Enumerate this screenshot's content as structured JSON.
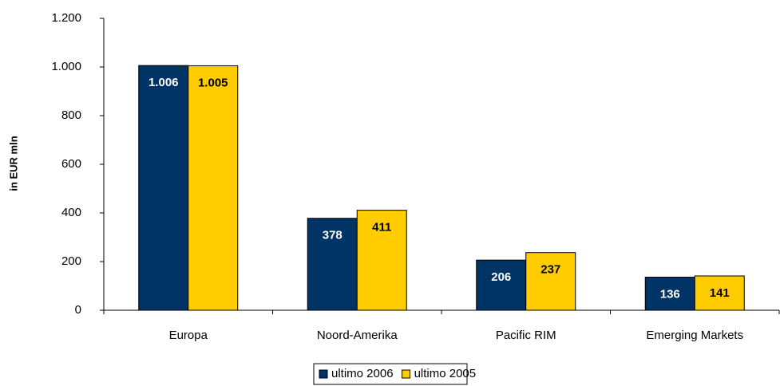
{
  "chart_data": {
    "type": "bar",
    "y_label": "in EUR mln",
    "categories": [
      "Europa",
      "Noord-Amerika",
      "Pacific RIM",
      "Emerging Markets"
    ],
    "series": [
      {
        "name": "ultimo 2006",
        "color": "#003366",
        "values": [
          1006,
          378,
          206,
          136
        ],
        "value_labels": [
          "1.006",
          "378",
          "206",
          "136"
        ]
      },
      {
        "name": "ultimo 2005",
        "color": "#ffcc00",
        "values": [
          1005,
          411,
          237,
          141
        ],
        "value_labels": [
          "1.005",
          "411",
          "237",
          "141"
        ]
      }
    ],
    "ylim": [
      0,
      1200
    ],
    "yticks": [
      0,
      200,
      400,
      600,
      800,
      {
        "value": 1000,
        "label": "1.000"
      },
      {
        "value": 1200,
        "label": "1.200"
      }
    ],
    "legend": "bottom"
  }
}
